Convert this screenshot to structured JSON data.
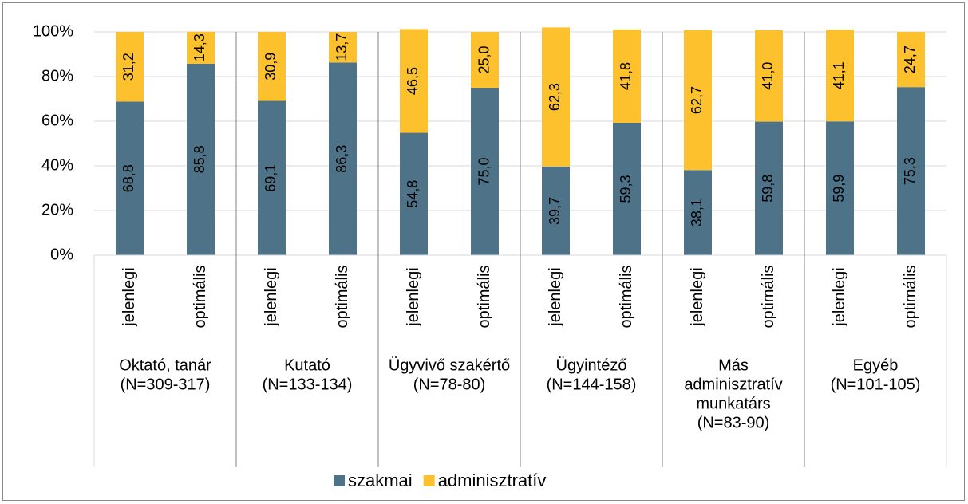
{
  "chart_data": {
    "type": "stacked-bar",
    "categories": [
      "jelenlegi",
      "optimális",
      "jelenlegi",
      "optimális",
      "jelenlegi",
      "optimális",
      "jelenlegi",
      "optimális",
      "jelenlegi",
      "optimális",
      "jelenlegi",
      "optimális"
    ],
    "groups": [
      [
        "Oktató, tanár",
        "(N=309-317)"
      ],
      [
        "Kutató",
        "(N=133-134)"
      ],
      [
        "Ügyvivő szakértő",
        "(N=78-80)"
      ],
      [
        "Ügyintéző",
        "(N=144-158)"
      ],
      [
        "Más",
        "adminisztratív",
        "munkatárs",
        "(N=83-90)"
      ],
      [
        "Egyéb",
        "(N=101-105)"
      ]
    ],
    "series": [
      {
        "name": "szakmai",
        "color": "#4e7388",
        "values": [
          68.8,
          85.8,
          69.1,
          86.3,
          54.8,
          75.0,
          39.7,
          59.3,
          38.1,
          59.8,
          59.9,
          75.3
        ],
        "value_labels": [
          "68,8",
          "85,8",
          "69,1",
          "86,3",
          "54,8",
          "75,0",
          "39,7",
          "59,3",
          "38,1",
          "59,8",
          "59,9",
          "75,3"
        ]
      },
      {
        "name": "adminisztratív",
        "color": "#fdc12e",
        "values": [
          31.2,
          14.3,
          30.9,
          13.7,
          46.5,
          25.0,
          62.3,
          41.8,
          62.7,
          41.0,
          41.1,
          24.7
        ],
        "value_labels": [
          "31,2",
          "14,3",
          "30,9",
          "13,7",
          "46,5",
          "25,0",
          "62,3",
          "41,8",
          "62,7",
          "41,0",
          "41,1",
          "24,7"
        ]
      }
    ],
    "ylim": [
      0,
      100
    ],
    "yticks": [
      {
        "value": 0,
        "label": "0%"
      },
      {
        "value": 20,
        "label": "20%"
      },
      {
        "value": 40,
        "label": "40%"
      },
      {
        "value": 60,
        "label": "60%"
      },
      {
        "value": 80,
        "label": "80%"
      },
      {
        "value": 100,
        "label": "100%"
      }
    ],
    "grid": true,
    "legend": "bottom"
  }
}
